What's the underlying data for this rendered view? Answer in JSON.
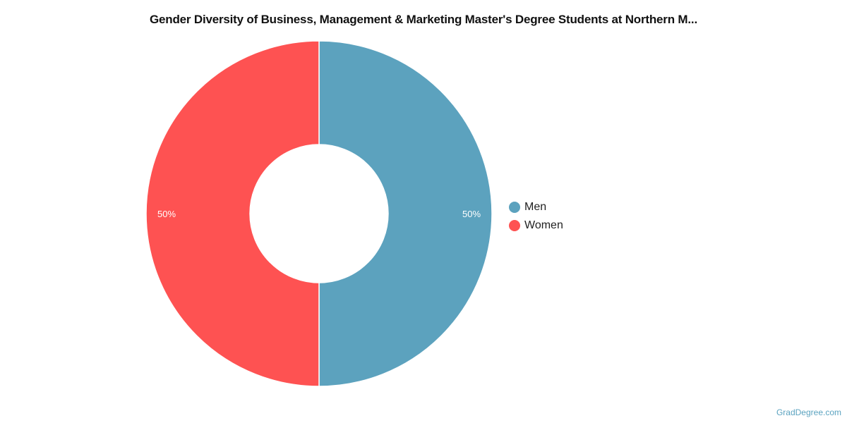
{
  "chart_data": {
    "type": "pie",
    "donut": true,
    "title": "Gender Diversity of Business, Management & Marketing Master's Degree Students at Northern M...",
    "series": [
      {
        "name": "Men",
        "value": 50,
        "label": "50%",
        "color": "#5ca2be"
      },
      {
        "name": "Women",
        "value": 50,
        "label": "50%",
        "color": "#fe5252"
      }
    ],
    "legend_position": "right"
  },
  "credit": "GradDegree.com"
}
